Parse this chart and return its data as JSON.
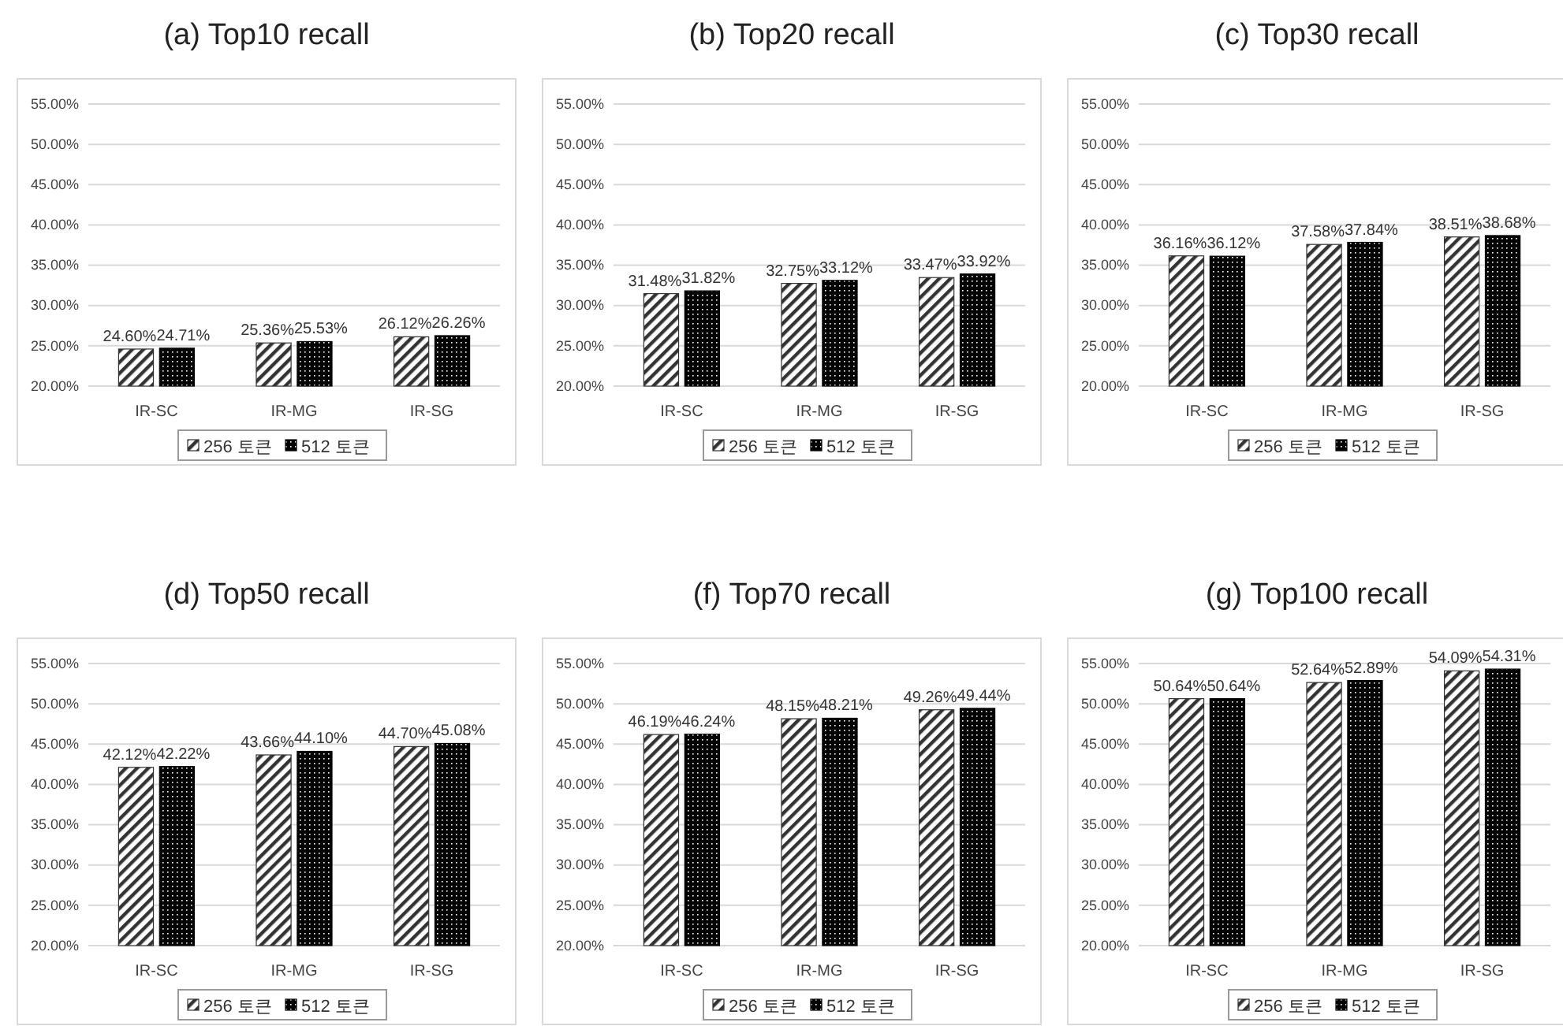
{
  "chart_data": [
    {
      "type": "bar",
      "title": "(a) Top10 recall",
      "categories": [
        "IR-SC",
        "IR-MG",
        "IR-SG"
      ],
      "ylim": [
        20,
        55
      ],
      "yticks": [
        {
          "value": 20,
          "label": "20.00%"
        },
        {
          "value": 25,
          "label": "25.00%"
        },
        {
          "value": 30,
          "label": "30.00%"
        },
        {
          "value": 35,
          "label": "35.00%"
        },
        {
          "value": 40,
          "label": "40.00%"
        },
        {
          "value": 45,
          "label": "45.00%"
        },
        {
          "value": 50,
          "label": "50.00%"
        },
        {
          "value": 55,
          "label": "55.00%"
        }
      ],
      "grid": "y",
      "legend": "bottom",
      "series": [
        {
          "name": "256 토큰",
          "color": "#333333",
          "values": [
            24.6,
            25.36,
            26.12
          ],
          "value_labels": [
            "24.60%",
            "25.36%",
            "26.12%"
          ]
        },
        {
          "name": "512 토큰",
          "color": "#000000",
          "values": [
            24.71,
            25.53,
            26.26
          ],
          "value_labels": [
            "24.71%",
            "25.53%",
            "26.26%"
          ]
        }
      ]
    },
    {
      "type": "bar",
      "title": "(b) Top20 recall",
      "categories": [
        "IR-SC",
        "IR-MG",
        "IR-SG"
      ],
      "ylim": [
        20,
        55
      ],
      "yticks": [
        {
          "value": 20,
          "label": "20.00%"
        },
        {
          "value": 25,
          "label": "25.00%"
        },
        {
          "value": 30,
          "label": "30.00%"
        },
        {
          "value": 35,
          "label": "35.00%"
        },
        {
          "value": 40,
          "label": "40.00%"
        },
        {
          "value": 45,
          "label": "45.00%"
        },
        {
          "value": 50,
          "label": "50.00%"
        },
        {
          "value": 55,
          "label": "55.00%"
        }
      ],
      "grid": "y",
      "legend": "bottom",
      "series": [
        {
          "name": "256 토큰",
          "color": "#333333",
          "values": [
            31.48,
            32.75,
            33.47
          ],
          "value_labels": [
            "31.48%",
            "32.75%",
            "33.47%"
          ]
        },
        {
          "name": "512 토큰",
          "color": "#000000",
          "values": [
            31.82,
            33.12,
            33.92
          ],
          "value_labels": [
            "31.82%",
            "33.12%",
            "33.92%"
          ]
        }
      ]
    },
    {
      "type": "bar",
      "title": "(c) Top30 recall",
      "categories": [
        "IR-SC",
        "IR-MG",
        "IR-SG"
      ],
      "ylim": [
        20,
        55
      ],
      "yticks": [
        {
          "value": 20,
          "label": "20.00%"
        },
        {
          "value": 25,
          "label": "25.00%"
        },
        {
          "value": 30,
          "label": "30.00%"
        },
        {
          "value": 35,
          "label": "35.00%"
        },
        {
          "value": 40,
          "label": "40.00%"
        },
        {
          "value": 45,
          "label": "45.00%"
        },
        {
          "value": 50,
          "label": "50.00%"
        },
        {
          "value": 55,
          "label": "55.00%"
        }
      ],
      "grid": "y",
      "legend": "bottom",
      "series": [
        {
          "name": "256 토큰",
          "color": "#333333",
          "values": [
            36.16,
            37.58,
            38.51
          ],
          "value_labels": [
            "36.16%",
            "37.58%",
            "38.51%"
          ]
        },
        {
          "name": "512 토큰",
          "color": "#000000",
          "values": [
            36.12,
            37.84,
            38.68
          ],
          "value_labels": [
            "36.12%",
            "37.84%",
            "38.68%"
          ]
        }
      ]
    },
    {
      "type": "bar",
      "title": "(d) Top50 recall",
      "categories": [
        "IR-SC",
        "IR-MG",
        "IR-SG"
      ],
      "ylim": [
        20,
        55
      ],
      "yticks": [
        {
          "value": 20,
          "label": "20.00%"
        },
        {
          "value": 25,
          "label": "25.00%"
        },
        {
          "value": 30,
          "label": "30.00%"
        },
        {
          "value": 35,
          "label": "35.00%"
        },
        {
          "value": 40,
          "label": "40.00%"
        },
        {
          "value": 45,
          "label": "45.00%"
        },
        {
          "value": 50,
          "label": "50.00%"
        },
        {
          "value": 55,
          "label": "55.00%"
        }
      ],
      "grid": "y",
      "legend": "bottom",
      "series": [
        {
          "name": "256 토큰",
          "color": "#333333",
          "values": [
            42.12,
            43.66,
            44.7
          ],
          "value_labels": [
            "42.12%",
            "43.66%",
            "44.70%"
          ]
        },
        {
          "name": "512 토큰",
          "color": "#000000",
          "values": [
            42.22,
            44.1,
            45.08
          ],
          "value_labels": [
            "42.22%",
            "44.10%",
            "45.08%"
          ]
        }
      ]
    },
    {
      "type": "bar",
      "title": "(f) Top70 recall",
      "categories": [
        "IR-SC",
        "IR-MG",
        "IR-SG"
      ],
      "ylim": [
        20,
        55
      ],
      "yticks": [
        {
          "value": 20,
          "label": "20.00%"
        },
        {
          "value": 25,
          "label": "25.00%"
        },
        {
          "value": 30,
          "label": "30.00%"
        },
        {
          "value": 35,
          "label": "35.00%"
        },
        {
          "value": 40,
          "label": "40.00%"
        },
        {
          "value": 45,
          "label": "45.00%"
        },
        {
          "value": 50,
          "label": "50.00%"
        },
        {
          "value": 55,
          "label": "55.00%"
        }
      ],
      "grid": "y",
      "legend": "bottom",
      "series": [
        {
          "name": "256 토큰",
          "color": "#333333",
          "values": [
            46.19,
            48.15,
            49.26
          ],
          "value_labels": [
            "46.19%",
            "48.15%",
            "49.26%"
          ]
        },
        {
          "name": "512 토큰",
          "color": "#000000",
          "values": [
            46.24,
            48.21,
            49.44
          ],
          "value_labels": [
            "46.24%",
            "48.21%",
            "49.44%"
          ]
        }
      ]
    },
    {
      "type": "bar",
      "title": "(g) Top100 recall",
      "categories": [
        "IR-SC",
        "IR-MG",
        "IR-SG"
      ],
      "ylim": [
        20,
        55
      ],
      "yticks": [
        {
          "value": 20,
          "label": "20.00%"
        },
        {
          "value": 25,
          "label": "25.00%"
        },
        {
          "value": 30,
          "label": "30.00%"
        },
        {
          "value": 35,
          "label": "35.00%"
        },
        {
          "value": 40,
          "label": "40.00%"
        },
        {
          "value": 45,
          "label": "45.00%"
        },
        {
          "value": 50,
          "label": "50.00%"
        },
        {
          "value": 55,
          "label": "55.00%"
        }
      ],
      "grid": "y",
      "legend": "bottom",
      "series": [
        {
          "name": "256 토큰",
          "color": "#333333",
          "values": [
            50.64,
            52.64,
            54.09
          ],
          "value_labels": [
            "50.64%",
            "52.64%",
            "54.09%"
          ]
        },
        {
          "name": "512 토큰",
          "color": "#000000",
          "values": [
            50.64,
            52.89,
            54.31
          ],
          "value_labels": [
            "50.64%",
            "52.89%",
            "54.31%"
          ]
        }
      ]
    }
  ]
}
